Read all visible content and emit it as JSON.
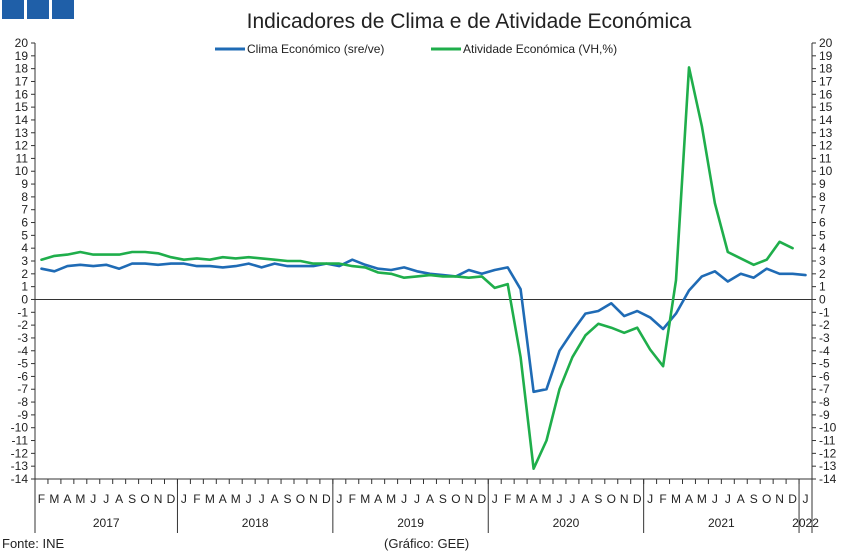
{
  "header": {
    "logo_color": "#1f5fa8"
  },
  "footer": {
    "source": "Fonte: INE",
    "credit": "(Gráfico: GEE)"
  },
  "chart_data": {
    "type": "line",
    "title": "Indicadores de Clima e de Atividade Económica",
    "ylim": [
      -14,
      20
    ],
    "yticks": [
      -14,
      -13,
      -12,
      -11,
      -10,
      -9,
      -8,
      -7,
      -6,
      -5,
      -4,
      -3,
      -2,
      -1,
      0,
      1,
      2,
      3,
      4,
      5,
      6,
      7,
      8,
      9,
      10,
      11,
      12,
      13,
      14,
      15,
      16,
      17,
      18,
      19,
      20
    ],
    "grid": false,
    "legend_position": "top-center",
    "month_labels": [
      "F",
      "M",
      "A",
      "M",
      "J",
      "J",
      "A",
      "S",
      "O",
      "N",
      "D",
      "J",
      "F",
      "M",
      "A",
      "M",
      "J",
      "J",
      "A",
      "S",
      "O",
      "N",
      "D",
      "J",
      "F",
      "M",
      "A",
      "M",
      "J",
      "J",
      "A",
      "S",
      "O",
      "N",
      "D",
      "J",
      "F",
      "M",
      "A",
      "M",
      "J",
      "J",
      "A",
      "S",
      "O",
      "N",
      "D",
      "J",
      "F",
      "M",
      "A",
      "M",
      "J",
      "J",
      "A",
      "S",
      "O",
      "N",
      "D",
      "J"
    ],
    "years": [
      {
        "label": "2017",
        "start": 0,
        "end": 10
      },
      {
        "label": "2018",
        "start": 11,
        "end": 22
      },
      {
        "label": "2019",
        "start": 23,
        "end": 34
      },
      {
        "label": "2020",
        "start": 35,
        "end": 46
      },
      {
        "label": "2021",
        "start": 47,
        "end": 58
      },
      {
        "label": "2022",
        "start": 59,
        "end": 59
      }
    ],
    "series": [
      {
        "name": "Clima Económico (sre/ve)",
        "color": "#1f6bb5",
        "values": [
          2.4,
          2.2,
          2.6,
          2.7,
          2.6,
          2.7,
          2.4,
          2.8,
          2.8,
          2.7,
          2.8,
          2.8,
          2.6,
          2.6,
          2.5,
          2.6,
          2.8,
          2.5,
          2.8,
          2.6,
          2.6,
          2.6,
          2.8,
          2.6,
          3.1,
          2.7,
          2.4,
          2.3,
          2.5,
          2.2,
          2.0,
          1.9,
          1.8,
          2.3,
          2.0,
          2.3,
          2.5,
          0.8,
          -7.2,
          -7.0,
          -4.0,
          -2.5,
          -1.1,
          -0.9,
          -0.3,
          -1.3,
          -0.9,
          -1.4,
          -2.3,
          -1.1,
          0.7,
          1.8,
          2.2,
          1.4,
          2.0,
          1.7,
          2.4,
          2.0,
          2.0,
          1.9
        ]
      },
      {
        "name": "Atividade Económica (VH,%)",
        "color": "#1fae4b",
        "values": [
          3.1,
          3.4,
          3.5,
          3.7,
          3.5,
          3.5,
          3.5,
          3.7,
          3.7,
          3.6,
          3.3,
          3.1,
          3.2,
          3.1,
          3.3,
          3.2,
          3.3,
          3.2,
          3.1,
          3.0,
          3.0,
          2.8,
          2.8,
          2.8,
          2.6,
          2.5,
          2.1,
          2.0,
          1.7,
          1.8,
          1.9,
          1.8,
          1.8,
          1.7,
          1.8,
          0.9,
          1.2,
          -4.5,
          -13.2,
          -11.0,
          -7.0,
          -4.5,
          -2.8,
          -1.9,
          -2.2,
          -2.6,
          -2.2,
          -3.9,
          -5.2,
          1.5,
          18.1,
          13.5,
          7.5,
          3.7,
          3.2,
          2.7,
          3.1,
          4.5,
          4.0
        ]
      }
    ]
  }
}
